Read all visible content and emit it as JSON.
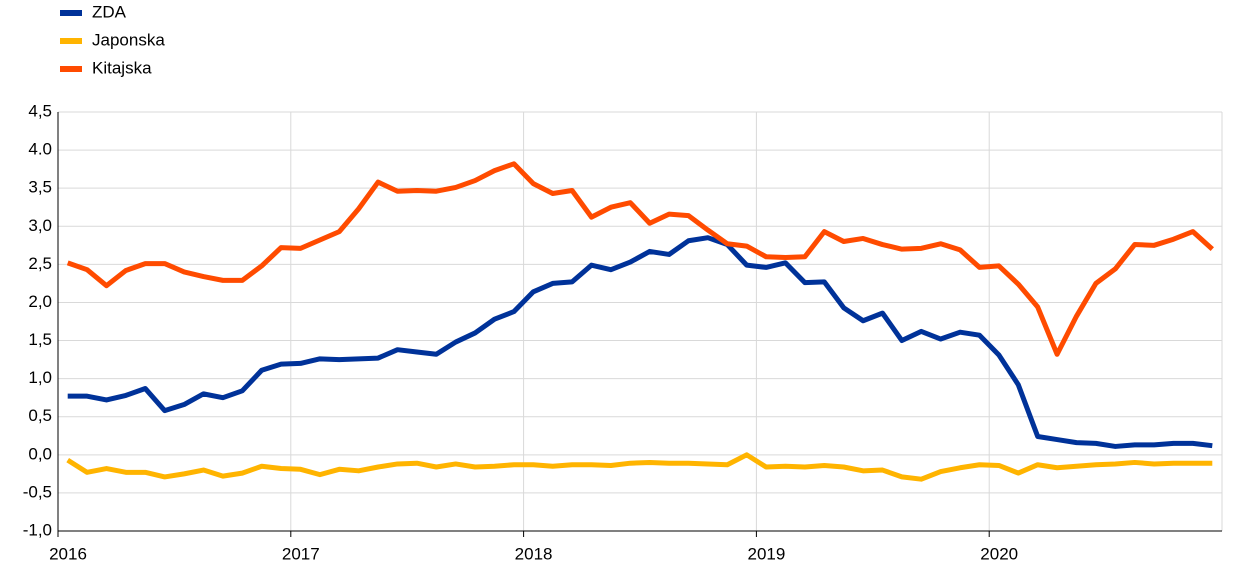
{
  "chart_data": {
    "type": "line",
    "categories": [
      "2016",
      null,
      null,
      null,
      null,
      null,
      null,
      null,
      null,
      null,
      null,
      null,
      "2017",
      null,
      null,
      null,
      null,
      null,
      null,
      null,
      null,
      null,
      null,
      null,
      "2018",
      null,
      null,
      null,
      null,
      null,
      null,
      null,
      null,
      null,
      null,
      null,
      "2019",
      null,
      null,
      null,
      null,
      null,
      null,
      null,
      null,
      null,
      null,
      null,
      "2020",
      null,
      null,
      null,
      null,
      null,
      null,
      null,
      null,
      null,
      null,
      null
    ],
    "series": [
      {
        "name": "ZDA",
        "color": "#003299",
        "values": [
          0.77,
          0.77,
          0.72,
          0.78,
          0.87,
          0.58,
          0.66,
          0.8,
          0.75,
          0.84,
          1.11,
          1.19,
          1.2,
          1.26,
          1.25,
          1.26,
          1.27,
          1.38,
          1.35,
          1.32,
          1.48,
          1.6,
          1.78,
          1.88,
          2.14,
          2.25,
          2.27,
          2.49,
          2.43,
          2.53,
          2.67,
          2.63,
          2.81,
          2.85,
          2.76,
          2.49,
          2.46,
          2.52,
          2.26,
          2.27,
          1.93,
          1.76,
          1.86,
          1.5,
          1.62,
          1.52,
          1.61,
          1.57,
          1.31,
          0.92,
          0.24,
          0.2,
          0.16,
          0.15,
          0.11,
          0.13,
          0.13,
          0.15,
          0.15,
          0.12
        ]
      },
      {
        "name": "Japonska",
        "color": "#ffb400",
        "values": [
          -0.07,
          -0.23,
          -0.18,
          -0.23,
          -0.23,
          -0.29,
          -0.25,
          -0.2,
          -0.28,
          -0.24,
          -0.15,
          -0.18,
          -0.19,
          -0.26,
          -0.19,
          -0.21,
          -0.16,
          -0.12,
          -0.11,
          -0.16,
          -0.12,
          -0.16,
          -0.15,
          -0.13,
          -0.13,
          -0.15,
          -0.13,
          -0.13,
          -0.14,
          -0.11,
          -0.1,
          -0.11,
          -0.11,
          -0.12,
          -0.13,
          0.0,
          -0.16,
          -0.15,
          -0.16,
          -0.14,
          -0.16,
          -0.21,
          -0.2,
          -0.29,
          -0.32,
          -0.22,
          -0.17,
          -0.13,
          -0.14,
          -0.24,
          -0.13,
          -0.17,
          -0.15,
          -0.13,
          -0.12,
          -0.1,
          -0.12,
          -0.11,
          -0.11,
          -0.11
        ]
      },
      {
        "name": "Kitajska",
        "color": "#ff4b00",
        "values": [
          2.52,
          2.43,
          2.22,
          2.42,
          2.51,
          2.51,
          2.4,
          2.34,
          2.29,
          2.29,
          2.48,
          2.72,
          2.71,
          2.82,
          2.93,
          3.23,
          3.58,
          3.46,
          3.47,
          3.46,
          3.51,
          3.6,
          3.73,
          3.82,
          3.56,
          3.43,
          3.47,
          3.12,
          3.25,
          3.31,
          3.04,
          3.16,
          3.14,
          2.95,
          2.77,
          2.74,
          2.6,
          2.59,
          2.6,
          2.93,
          2.8,
          2.84,
          2.76,
          2.7,
          2.71,
          2.77,
          2.69,
          2.46,
          2.48,
          2.24,
          1.94,
          1.32,
          1.82,
          2.25,
          2.44,
          2.76,
          2.75,
          2.83,
          2.93,
          2.7
        ]
      }
    ],
    "ylim": [
      -1.0,
      4.5
    ],
    "yticks": [
      {
        "value": -1.0,
        "label": "-1,0"
      },
      {
        "value": -0.5,
        "label": "-0,5"
      },
      {
        "value": 0,
        "label": "0,0"
      },
      {
        "value": 0.5,
        "label": "0,5"
      },
      {
        "value": 1.0,
        "label": "1,0"
      },
      {
        "value": 1.5,
        "label": "1,5"
      },
      {
        "value": 2.0,
        "label": "2,0"
      },
      {
        "value": 2.5,
        "label": "2,5"
      },
      {
        "value": 3.0,
        "label": "3,0"
      },
      {
        "value": 3.5,
        "label": "3,5"
      },
      {
        "value": 4.0,
        "label": "4.0"
      },
      {
        "value": 4.5,
        "label": "4,5"
      }
    ],
    "grid": true,
    "legend": "top-left"
  }
}
